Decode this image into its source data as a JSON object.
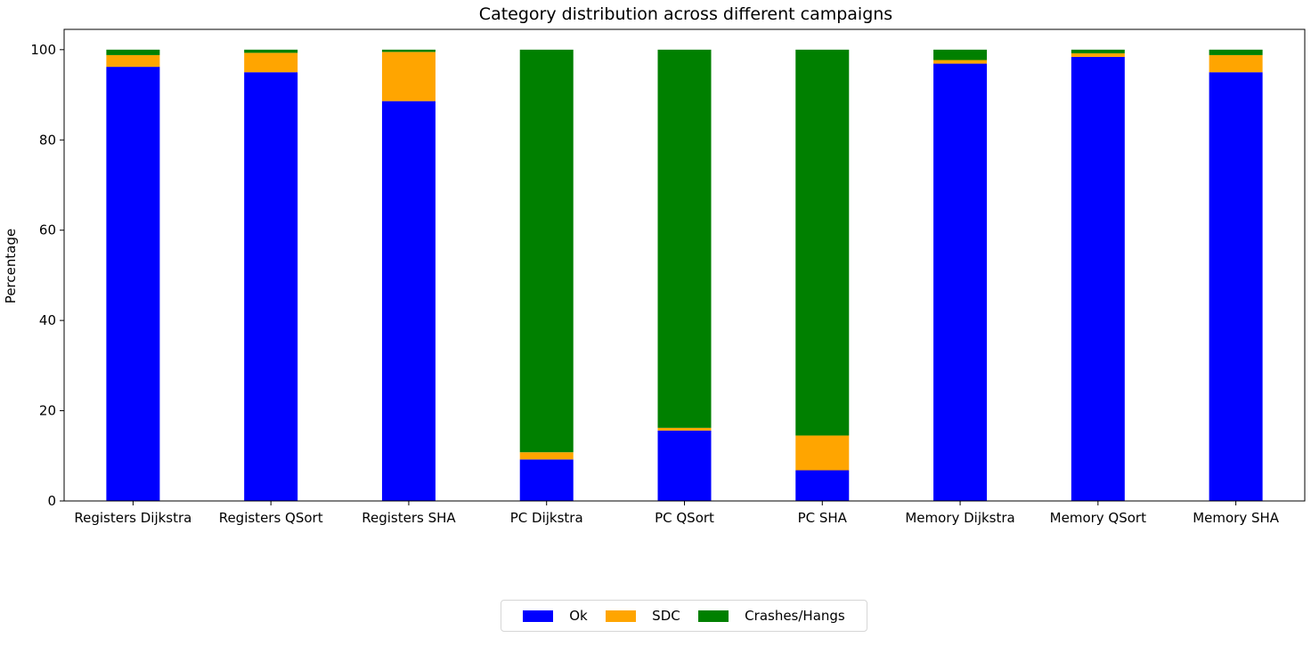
{
  "chart_data": {
    "type": "bar",
    "stacked": true,
    "title": "Category distribution across different campaigns",
    "xlabel": "",
    "ylabel": "Percentage",
    "ylim": [
      0,
      104.5
    ],
    "yticks": [
      0,
      20,
      40,
      60,
      80,
      100
    ],
    "categories": [
      "Registers Dijkstra",
      "Registers QSort",
      "Registers SHA",
      "PC Dijkstra",
      "PC QSort",
      "PC SHA",
      "Memory Dijkstra",
      "Memory QSort",
      "Memory SHA"
    ],
    "series": [
      {
        "name": "Ok",
        "color": "#0000ff",
        "values": [
          96.2,
          95.0,
          88.6,
          9.2,
          15.6,
          6.8,
          96.9,
          98.4,
          95.0
        ]
      },
      {
        "name": "SDC",
        "color": "#ffa500",
        "values": [
          2.6,
          4.3,
          10.9,
          1.6,
          0.6,
          7.7,
          0.8,
          0.8,
          3.8
        ]
      },
      {
        "name": "Crashes/Hangs",
        "color": "#008000",
        "values": [
          1.2,
          0.7,
          0.5,
          89.2,
          83.8,
          85.5,
          2.3,
          0.8,
          1.2
        ]
      }
    ],
    "legend_position": "bottom-center"
  }
}
